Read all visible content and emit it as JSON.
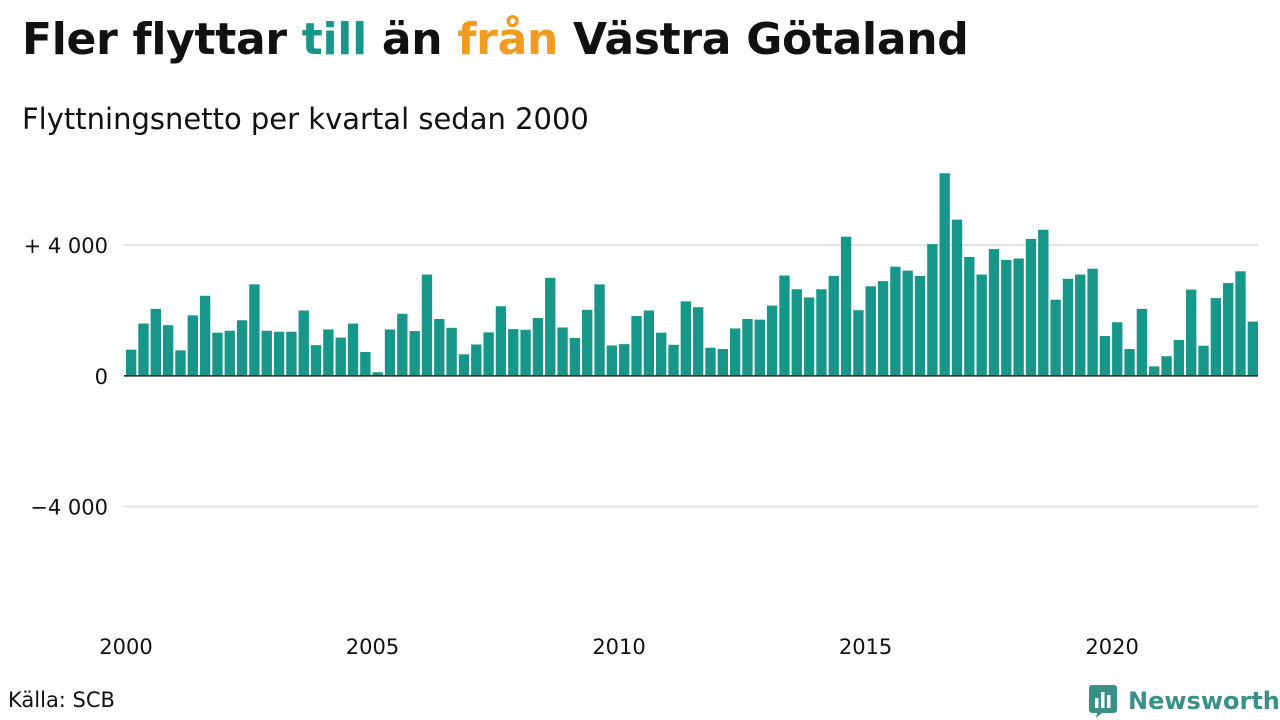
{
  "title": {
    "part1": "Fler flyttar ",
    "till": "till",
    "part2": " än ",
    "fran": "från",
    "part3": " Västra Götaland"
  },
  "subtitle": "Flyttningsnetto per kvartal sedan 2000",
  "source": "Källa: SCB",
  "logo_text": "Newsworthy",
  "colors": {
    "till": "#16978a",
    "fran": "#f29c1f",
    "bar": "#16978a",
    "grid": "#e2e2e2",
    "axis": "#222222",
    "logo": "#3a8f86"
  },
  "chart_data": {
    "type": "bar",
    "x_start": "2000-Q1",
    "x_ticks": [
      2000,
      2005,
      2010,
      2015,
      2020
    ],
    "y_ticks": [
      {
        "value": 4000,
        "label": "+ 4 000"
      },
      {
        "value": 0,
        "label": "0"
      },
      {
        "value": -4000,
        "label": "−4 000"
      }
    ],
    "ylim": [
      -6800,
      6300
    ],
    "grid": true,
    "values": [
      800,
      1600,
      2050,
      1550,
      780,
      1850,
      2450,
      1320,
      1380,
      1700,
      2800,
      1380,
      1350,
      1350,
      2000,
      940,
      1420,
      1170,
      1600,
      730,
      110,
      1420,
      1900,
      1370,
      3100,
      1740,
      1470,
      660,
      960,
      1330,
      2130,
      1430,
      1410,
      1770,
      3000,
      1480,
      1160,
      2020,
      2800,
      930,
      970,
      1830,
      2000,
      1320,
      950,
      2280,
      2100,
      860,
      820,
      1450,
      1740,
      1720,
      2150,
      3070,
      2650,
      2400,
      2650,
      3060,
      4260,
      2010,
      2740,
      2900,
      3340,
      3220,
      3060,
      4030,
      6200,
      4780,
      3640,
      3100,
      3880,
      3550,
      3590,
      4190,
      4470,
      2330,
      2970,
      3100,
      3280,
      1220,
      1640,
      820,
      2050,
      290,
      600,
      1100,
      2640,
      920,
      2380,
      2840,
      3200,
      1660
    ]
  }
}
